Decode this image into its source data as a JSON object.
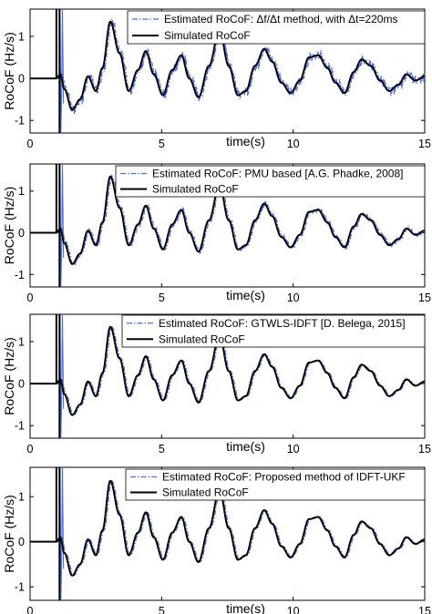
{
  "chart_data": [
    {
      "type": "line",
      "xlabel": "time(s)",
      "ylabel": "RoCoF (Hz/s)",
      "xlim": [
        0,
        15
      ],
      "ylim": [
        -1.3,
        1.65
      ],
      "xticks": [
        "0",
        "5",
        "10",
        "15"
      ],
      "yticks": [
        "-1",
        "0",
        "1"
      ],
      "grid": false,
      "legend_position": "top-right",
      "series": [
        {
          "name": "Estimated RoCoF: Δf/Δt method, with Δt=220ms",
          "style": "dash-dot",
          "color": "#4f6fdc",
          "noise": "high"
        },
        {
          "name": "Simulated RoCoF",
          "style": "solid",
          "color": "#000000",
          "x": [
            0,
            1,
            1.15,
            1.3,
            1.6,
            1.9,
            2.2,
            2.5,
            2.75,
            3.05,
            3.4,
            3.75,
            4.1,
            4.4,
            4.7,
            5.05,
            5.4,
            5.75,
            6.05,
            6.4,
            6.8,
            7.2,
            7.55,
            7.9,
            8.2,
            8.55,
            8.9,
            9.2,
            9.55,
            9.9,
            10.25,
            10.6,
            10.95,
            11.3,
            11.6,
            11.95,
            12.3,
            12.6,
            12.95,
            13.3,
            13.65,
            14.0,
            14.3,
            14.65,
            15.0
          ],
          "y": [
            0,
            0,
            0.1,
            -0.25,
            -0.75,
            -0.5,
            0.05,
            -0.3,
            0.25,
            1.35,
            0.6,
            -0.3,
            0.2,
            0.65,
            0.1,
            -0.4,
            0.2,
            0.55,
            0.0,
            -0.45,
            0.3,
            1.15,
            0.3,
            -0.4,
            -0.3,
            0.3,
            0.7,
            0.4,
            -0.1,
            -0.35,
            -0.05,
            0.5,
            0.55,
            0.25,
            -0.1,
            -0.35,
            0.15,
            0.45,
            0.3,
            -0.05,
            -0.3,
            -0.15,
            0.1,
            -0.05,
            0.05
          ]
        }
      ]
    },
    {
      "type": "line",
      "xlabel": "time(s)",
      "ylabel": "RoCoF (Hz/s)",
      "xlim": [
        0,
        15
      ],
      "ylim": [
        -1.3,
        1.65
      ],
      "xticks": [
        "0",
        "5",
        "10",
        "15"
      ],
      "yticks": [
        "-1",
        "0",
        "1"
      ],
      "grid": false,
      "legend_position": "top-right",
      "series": [
        {
          "name": "Estimated RoCoF: PMU based [A.G. Phadke, 2008]",
          "style": "dash-dot",
          "color": "#4f6fdc",
          "noise": "medium"
        },
        {
          "name": "Simulated RoCoF",
          "style": "solid",
          "color": "#000000",
          "x": [
            0,
            1,
            1.15,
            1.3,
            1.6,
            1.9,
            2.2,
            2.5,
            2.75,
            3.05,
            3.4,
            3.75,
            4.1,
            4.4,
            4.7,
            5.05,
            5.4,
            5.75,
            6.05,
            6.4,
            6.8,
            7.2,
            7.55,
            7.9,
            8.2,
            8.55,
            8.9,
            9.2,
            9.55,
            9.9,
            10.25,
            10.6,
            10.95,
            11.3,
            11.6,
            11.95,
            12.3,
            12.6,
            12.95,
            13.3,
            13.65,
            14.0,
            14.3,
            14.65,
            15.0
          ],
          "y": [
            0,
            0,
            0.1,
            -0.25,
            -0.75,
            -0.5,
            0.05,
            -0.3,
            0.25,
            1.35,
            0.6,
            -0.3,
            0.2,
            0.65,
            0.1,
            -0.4,
            0.2,
            0.55,
            0.0,
            -0.45,
            0.3,
            1.15,
            0.3,
            -0.4,
            -0.3,
            0.3,
            0.7,
            0.4,
            -0.1,
            -0.35,
            -0.05,
            0.5,
            0.55,
            0.25,
            -0.1,
            -0.35,
            0.15,
            0.45,
            0.3,
            -0.05,
            -0.3,
            -0.15,
            0.1,
            -0.05,
            0.05
          ]
        }
      ]
    },
    {
      "type": "line",
      "xlabel": "time(s)",
      "ylabel": "RoCoF (Hz/s)",
      "xlim": [
        0,
        15
      ],
      "ylim": [
        -1.3,
        1.65
      ],
      "xticks": [
        "0",
        "5",
        "10",
        "15"
      ],
      "yticks": [
        "-1",
        "0",
        "1"
      ],
      "grid": false,
      "legend_position": "top-right",
      "series": [
        {
          "name": "Estimated RoCoF: GTWLS-IDFT [D. Belega, 2015]",
          "style": "dash-dot",
          "color": "#4f6fdc",
          "noise": "low"
        },
        {
          "name": "Simulated RoCoF",
          "style": "solid",
          "color": "#000000",
          "x": [
            0,
            1,
            1.15,
            1.3,
            1.6,
            1.9,
            2.2,
            2.5,
            2.75,
            3.05,
            3.4,
            3.75,
            4.1,
            4.4,
            4.7,
            5.05,
            5.4,
            5.75,
            6.05,
            6.4,
            6.8,
            7.2,
            7.55,
            7.9,
            8.2,
            8.55,
            8.9,
            9.2,
            9.55,
            9.9,
            10.25,
            10.6,
            10.95,
            11.3,
            11.6,
            11.95,
            12.3,
            12.6,
            12.95,
            13.3,
            13.65,
            14.0,
            14.3,
            14.65,
            15.0
          ],
          "y": [
            0,
            0,
            0.1,
            -0.25,
            -0.75,
            -0.5,
            0.05,
            -0.3,
            0.25,
            1.35,
            0.6,
            -0.3,
            0.2,
            0.65,
            0.1,
            -0.4,
            0.2,
            0.55,
            0.0,
            -0.45,
            0.3,
            1.15,
            0.3,
            -0.4,
            -0.3,
            0.3,
            0.7,
            0.4,
            -0.1,
            -0.35,
            -0.05,
            0.5,
            0.55,
            0.25,
            -0.1,
            -0.35,
            0.15,
            0.45,
            0.3,
            -0.05,
            -0.3,
            -0.15,
            0.1,
            -0.05,
            0.05
          ]
        }
      ]
    },
    {
      "type": "line",
      "xlabel": "time(s)",
      "ylabel": "RoCoF (Hz/s)",
      "xlim": [
        0,
        15
      ],
      "ylim": [
        -1.3,
        1.65
      ],
      "xticks": [
        "0",
        "5",
        "10",
        "15"
      ],
      "yticks": [
        "-1",
        "0",
        "1"
      ],
      "grid": false,
      "legend_position": "top-right",
      "series": [
        {
          "name": "Estimated RoCoF: Proposed method of IDFT-UKF",
          "style": "dash-dot",
          "color": "#4f6fdc",
          "noise": "low"
        },
        {
          "name": "Simulated RoCoF",
          "style": "solid",
          "color": "#000000",
          "x": [
            0,
            1,
            1.15,
            1.3,
            1.6,
            1.9,
            2.2,
            2.5,
            2.75,
            3.05,
            3.4,
            3.75,
            4.1,
            4.4,
            4.7,
            5.05,
            5.4,
            5.75,
            6.05,
            6.4,
            6.8,
            7.2,
            7.55,
            7.9,
            8.2,
            8.55,
            8.9,
            9.2,
            9.55,
            9.9,
            10.25,
            10.6,
            10.95,
            11.3,
            11.6,
            11.95,
            12.3,
            12.6,
            12.95,
            13.3,
            13.65,
            14.0,
            14.3,
            14.65,
            15.0
          ],
          "y": [
            0,
            0,
            0.1,
            -0.25,
            -0.75,
            -0.5,
            0.05,
            -0.3,
            0.25,
            1.35,
            0.6,
            -0.3,
            0.2,
            0.65,
            0.1,
            -0.4,
            0.2,
            0.55,
            0.0,
            -0.45,
            0.3,
            1.15,
            0.3,
            -0.4,
            -0.3,
            0.3,
            0.7,
            0.4,
            -0.1,
            -0.35,
            -0.05,
            0.5,
            0.55,
            0.25,
            -0.1,
            -0.35,
            0.15,
            0.45,
            0.3,
            -0.05,
            -0.3,
            -0.15,
            0.1,
            -0.05,
            0.05
          ]
        }
      ]
    }
  ]
}
